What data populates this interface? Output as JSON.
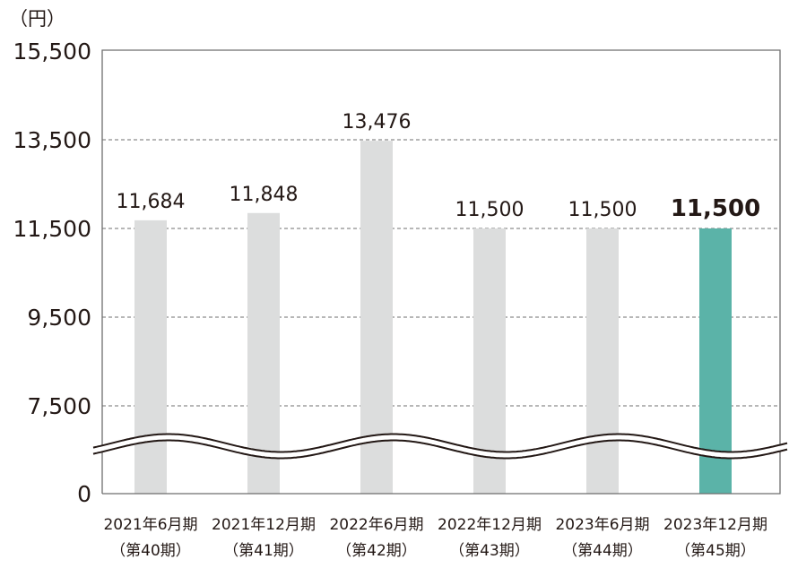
{
  "chart_data": {
    "type": "bar",
    "unit_label": "（円）",
    "categories": [
      {
        "period": "2021年6月期",
        "term": "（第40期）"
      },
      {
        "period": "2021年12月期",
        "term": "（第41期）"
      },
      {
        "period": "2022年6月期",
        "term": "（第42期）"
      },
      {
        "period": "2022年12月期",
        "term": "（第43期）"
      },
      {
        "period": "2023年6月期",
        "term": "（第44期）"
      },
      {
        "period": "2023年12月期",
        "term": "（第45期）"
      }
    ],
    "values": [
      11684,
      11848,
      13476,
      11500,
      11500,
      11500
    ],
    "value_labels": [
      "11,684",
      "11,848",
      "13,476",
      "11,500",
      "11,500",
      "11,500"
    ],
    "highlight_index": 5,
    "y_ticks": [
      {
        "value": 15500,
        "label": "15,500"
      },
      {
        "value": 13500,
        "label": "13,500"
      },
      {
        "value": 11500,
        "label": "11,500"
      },
      {
        "value": 9500,
        "label": "9,500"
      },
      {
        "value": 7500,
        "label": "7,500"
      },
      {
        "value": 0,
        "label": "0"
      }
    ],
    "axis_break": true,
    "grid": "dashed",
    "colors": {
      "bar": "#dcdddd",
      "highlight": "#5bb3a8",
      "grid": "#8c8c8c",
      "axis": "#6e6e6e",
      "text": "#231815"
    }
  }
}
